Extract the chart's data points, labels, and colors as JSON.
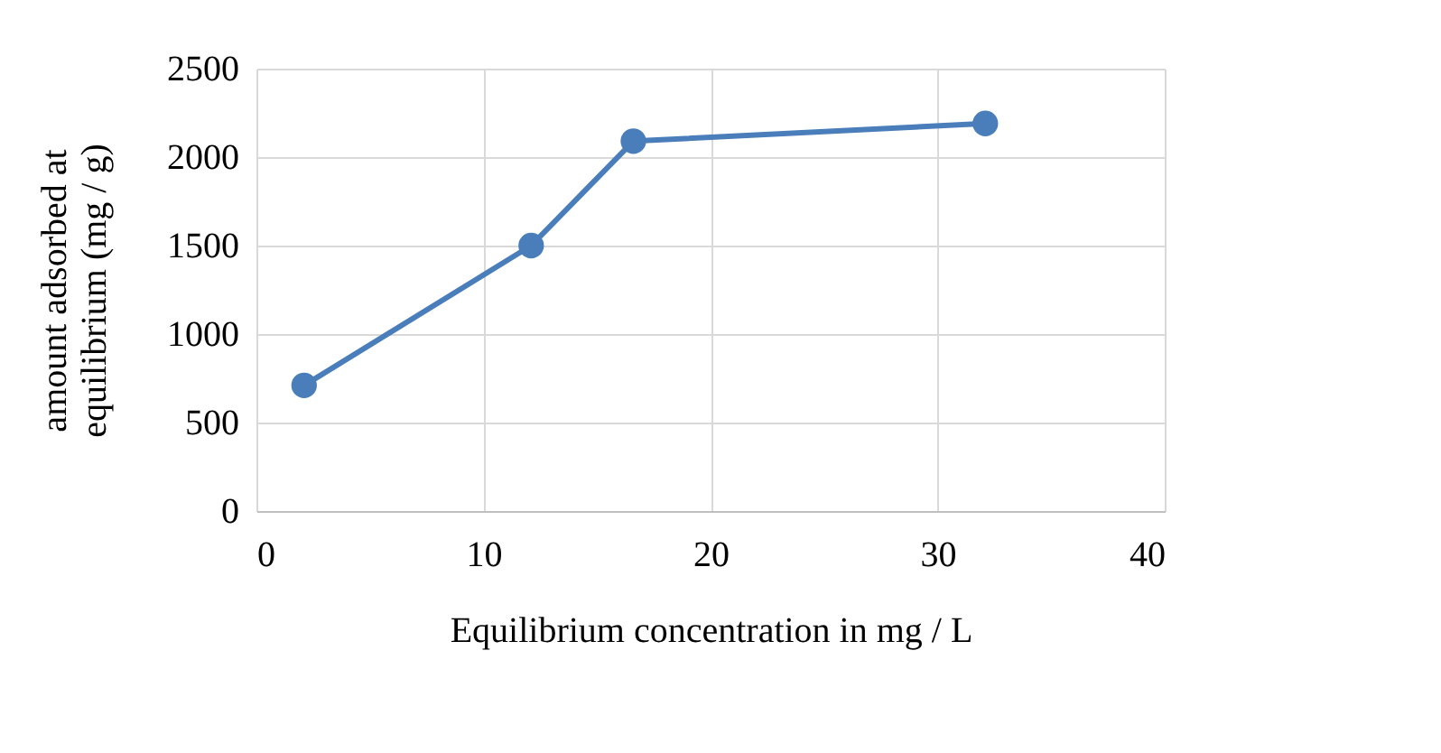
{
  "chart_data": {
    "type": "line",
    "xlabel": "Equilibrium concentration in mg / L",
    "ylabel": "amount adsorbed at equilibrium (mg / g)",
    "x": [
      2.1,
      12.1,
      16.6,
      32.1
    ],
    "series": [
      {
        "color": "#4a7ebb",
        "values": [
          710,
          1500,
          2090,
          2190
        ]
      }
    ],
    "xlim": [
      0,
      40
    ],
    "xticks": [
      0,
      10,
      20,
      30,
      40
    ],
    "ylim": [
      0,
      2500
    ],
    "yticks": [
      0,
      500,
      1000,
      1500,
      2000,
      2500
    ],
    "grid": true,
    "marker": "circle",
    "line_style": "solid"
  }
}
